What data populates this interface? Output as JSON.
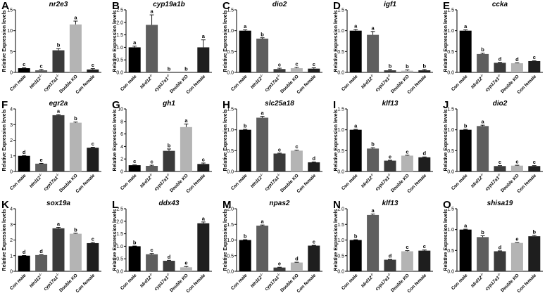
{
  "figure": {
    "ylabel": "Relative Expression levels",
    "bar_colors": [
      "#000000",
      "#5e5e5e",
      "#3a3a3a",
      "#b4b4b4",
      "#1e1e1e"
    ]
  },
  "chart_data": [
    {
      "panel": "A",
      "type": "bar",
      "title": "nr2e3",
      "ylabel": "Relative Expression levels",
      "ylim": [
        0,
        15
      ],
      "yticks": [
        "0",
        "5",
        "10",
        "15"
      ],
      "categories": [
        "Con male",
        "tdrd12-/-",
        "cyp17a1-/-",
        "Double KO",
        "Con female"
      ],
      "values": [
        1.0,
        0.5,
        5.3,
        11.5,
        0.7
      ],
      "errors": [
        0.1,
        0.2,
        0.4,
        0.8,
        0.2
      ],
      "letters": [
        "c",
        "c",
        "b",
        "a",
        "c"
      ],
      "exponent_marks": [
        false,
        true,
        true,
        false,
        false
      ]
    },
    {
      "panel": "B",
      "type": "bar",
      "title": "cyp19a1b",
      "ylabel": "Relative Expression levels",
      "ylim": [
        0,
        2.5
      ],
      "yticks": [
        "0.0",
        "0.5",
        "1.0",
        "1.5",
        "2.0",
        "2.5"
      ],
      "categories": [
        "Con male",
        "tdrd12-/-",
        "cyp17a1-/-",
        "Double KO",
        "Con female"
      ],
      "values": [
        1.0,
        1.9,
        0.0,
        0.0,
        1.0
      ],
      "errors": [
        0.05,
        0.4,
        0,
        0,
        0.3
      ],
      "letters": [
        "a",
        "a",
        "b",
        "b",
        "a"
      ],
      "exponent_marks": [
        false,
        true,
        true,
        false,
        false
      ]
    },
    {
      "panel": "C",
      "type": "bar",
      "title": "dio2",
      "ylabel": "Relative Expression levels",
      "ylim": [
        0,
        1.5
      ],
      "yticks": [
        "0.0",
        "0.5",
        "1.0",
        "1.5"
      ],
      "categories": [
        "Con male",
        "tdrd12-/-",
        "cyp17a1-/-",
        "Double KO",
        "Con female"
      ],
      "values": [
        1.0,
        0.81,
        0.08,
        0.1,
        0.09
      ],
      "errors": [
        0.02,
        0.02,
        0.02,
        0.02,
        0.02
      ],
      "letters": [
        "a",
        "b",
        "c",
        "c",
        "c"
      ],
      "exponent_marks": [
        false,
        true,
        true,
        false,
        false
      ]
    },
    {
      "panel": "D",
      "type": "bar",
      "title": "igf1",
      "ylabel": "Relative Expression levels",
      "ylim": [
        0,
        1.5
      ],
      "yticks": [
        "0.0",
        "0.5",
        "1.0",
        "1.5"
      ],
      "categories": [
        "Con male",
        "tdrd12-/-",
        "cyp17a1-/-",
        "Double KO",
        "Con female"
      ],
      "values": [
        1.0,
        0.9,
        0.05,
        0.04,
        0.05
      ],
      "errors": [
        0.03,
        0.08,
        0.02,
        0.02,
        0.02
      ],
      "letters": [
        "a",
        "a",
        "b",
        "b",
        "b"
      ],
      "exponent_marks": [
        false,
        true,
        true,
        false,
        false
      ]
    },
    {
      "panel": "E",
      "type": "bar",
      "title": "ccka",
      "ylabel": "Relative Expression levels",
      "ylim": [
        0,
        1.5
      ],
      "yticks": [
        "0.0",
        "0.5",
        "1.0",
        "1.5"
      ],
      "categories": [
        "Con male",
        "tdrd12-/-",
        "cyp17a1-/-",
        "Double KO",
        "Con female"
      ],
      "values": [
        1.0,
        0.44,
        0.23,
        0.22,
        0.27
      ],
      "errors": [
        0.02,
        0.02,
        0.01,
        0.01,
        0.01
      ],
      "letters": [
        "a",
        "b",
        "d",
        "d",
        "c"
      ],
      "exponent_marks": [
        false,
        true,
        true,
        false,
        false
      ]
    },
    {
      "panel": "F",
      "type": "bar",
      "title": "egr2a",
      "ylabel": "Relative Expression levels",
      "ylim": [
        0,
        4
      ],
      "yticks": [
        "0",
        "1",
        "2",
        "3",
        "4"
      ],
      "categories": [
        "Con male",
        "tdrd12-/-",
        "cyp17a1-/-",
        "Double KO",
        "Con female"
      ],
      "values": [
        1.0,
        0.5,
        3.6,
        3.12,
        1.52
      ],
      "errors": [
        0.02,
        0.02,
        0.04,
        0.04,
        0.03
      ],
      "letters": [
        "d",
        "e",
        "a",
        "b",
        "c"
      ],
      "exponent_marks": [
        false,
        true,
        true,
        false,
        false
      ]
    },
    {
      "panel": "G",
      "type": "bar",
      "title": "gh1",
      "ylabel": "Relative Expression levels",
      "ylim": [
        0,
        10
      ],
      "yticks": [
        "0",
        "2",
        "4",
        "6",
        "8",
        "10"
      ],
      "categories": [
        "Con male",
        "tdrd12-/-",
        "cyp17a1-/-",
        "Double KO",
        "Con female"
      ],
      "values": [
        1.0,
        0.9,
        3.3,
        7.1,
        1.2
      ],
      "errors": [
        0.05,
        0.1,
        0.3,
        0.5,
        0.15
      ],
      "letters": [
        "c",
        "c",
        "b",
        "a",
        "c"
      ],
      "exponent_marks": [
        false,
        true,
        true,
        false,
        false
      ]
    },
    {
      "panel": "H",
      "type": "bar",
      "title": "slc25a18",
      "ylabel": "Relative Expression levels",
      "ylim": [
        0,
        1.5
      ],
      "yticks": [
        "0.0",
        "0.5",
        "1.0",
        "1.5"
      ],
      "categories": [
        "Con male",
        "tdrd12-/-",
        "cyp17a1-/-",
        "Double KO",
        "Con female"
      ],
      "values": [
        1.0,
        1.29,
        0.43,
        0.5,
        0.22
      ],
      "errors": [
        0.01,
        0.03,
        0.01,
        0.01,
        0.01
      ],
      "letters": [
        "b",
        "a",
        "c",
        "c",
        "d"
      ],
      "exponent_marks": [
        false,
        true,
        true,
        false,
        false
      ]
    },
    {
      "panel": "I",
      "type": "bar",
      "title": "klf13",
      "ylabel": "Relative Expression levels",
      "ylim": [
        0,
        1.5
      ],
      "yticks": [
        "0.0",
        "0.5",
        "1.0",
        "1.5"
      ],
      "categories": [
        "Con male",
        "tdrd12-/-",
        "cyp17a1-/-",
        "Double KO",
        "Con female"
      ],
      "values": [
        1.0,
        0.55,
        0.26,
        0.38,
        0.34
      ],
      "errors": [
        0.01,
        0.02,
        0.01,
        0.01,
        0.01
      ],
      "letters": [
        "a",
        "b",
        "e",
        "c",
        "d"
      ],
      "exponent_marks": [
        false,
        true,
        true,
        false,
        false
      ]
    },
    {
      "panel": "J",
      "type": "bar",
      "title": "dio2",
      "ylabel": "Relative Expression levels",
      "ylim": [
        0,
        1.5
      ],
      "yticks": [
        "0.0",
        "0.5",
        "1.0",
        "1.5"
      ],
      "categories": [
        "Con male",
        "tdrd12-/-",
        "cyp17a1-/-",
        "Double KO",
        "Con female"
      ],
      "values": [
        1.0,
        1.09,
        0.13,
        0.14,
        0.13
      ],
      "errors": [
        0.01,
        0.02,
        0.01,
        0.01,
        0.01
      ],
      "letters": [
        "b",
        "a",
        "c",
        "c",
        "c"
      ],
      "exponent_marks": [
        false,
        true,
        true,
        false,
        false
      ]
    },
    {
      "panel": "K",
      "type": "bar",
      "title": "sox19a",
      "ylabel": "Relative Expression levels",
      "ylim": [
        0,
        4
      ],
      "yticks": [
        "0",
        "1",
        "2",
        "3",
        "4"
      ],
      "categories": [
        "Con male",
        "tdrd12-/-",
        "cyp17a1-/-",
        "Double KO",
        "Con female"
      ],
      "values": [
        1.0,
        1.04,
        2.75,
        2.4,
        1.8
      ],
      "errors": [
        0.01,
        0.02,
        0.06,
        0.03,
        0.04
      ],
      "letters": [
        "d",
        "d",
        "a",
        "b",
        "c"
      ],
      "exponent_marks": [
        false,
        true,
        true,
        false,
        false
      ]
    },
    {
      "panel": "L",
      "type": "bar",
      "title": "ddx43",
      "ylabel": "Relative Expression levels",
      "ylim": [
        0,
        2.5
      ],
      "yticks": [
        "0.0",
        "0.5",
        "1.0",
        "1.5",
        "2.0",
        "2.5"
      ],
      "categories": [
        "Con male",
        "tdrd12-/-",
        "cyp17a1-/-",
        "Double KO",
        "Con female"
      ],
      "values": [
        1.0,
        0.68,
        0.42,
        0.16,
        1.92
      ],
      "errors": [
        0.01,
        0.03,
        0.02,
        0.03,
        0.05
      ],
      "letters": [
        "b",
        "c",
        "d",
        "e",
        "a"
      ],
      "exponent_marks": [
        false,
        true,
        true,
        false,
        false
      ]
    },
    {
      "panel": "M",
      "type": "bar",
      "title": "npas2",
      "ylabel": "Relative Expression levels",
      "ylim": [
        0,
        2.0
      ],
      "yticks": [
        "0.0",
        "0.5",
        "1.0",
        "1.5",
        "2.0"
      ],
      "categories": [
        "Con male",
        "tdrd12-/-",
        "cyp17a1-/-",
        "Double KO",
        "Con female"
      ],
      "values": [
        1.0,
        1.46,
        0.12,
        0.28,
        0.82
      ],
      "errors": [
        0.01,
        0.02,
        0.01,
        0.01,
        0.01
      ],
      "letters": [
        "b",
        "a",
        "e",
        "d",
        "c"
      ],
      "exponent_marks": [
        false,
        true,
        true,
        false,
        false
      ]
    },
    {
      "panel": "N",
      "type": "bar",
      "title": "klf13",
      "ylabel": "Relative Expression levels",
      "ylim": [
        0,
        2.0
      ],
      "yticks": [
        "0.0",
        "0.5",
        "1.0",
        "1.5",
        "2.0"
      ],
      "categories": [
        "Con male",
        "tdrd12-/-",
        "cyp17a1-/-",
        "Double KO",
        "Con female"
      ],
      "values": [
        1.0,
        1.8,
        0.37,
        0.64,
        0.66
      ],
      "errors": [
        0.01,
        0.03,
        0.01,
        0.02,
        0.02
      ],
      "letters": [
        "b",
        "a",
        "d",
        "c",
        "c"
      ],
      "exponent_marks": [
        false,
        true,
        true,
        false,
        false
      ]
    },
    {
      "panel": "O",
      "type": "bar",
      "title": "shisa19",
      "ylabel": "Relative Expression levels",
      "ylim": [
        0,
        1.5
      ],
      "yticks": [
        "0.0",
        "0.5",
        "1.0",
        "1.5"
      ],
      "categories": [
        "Con male",
        "tdrd12-/-",
        "cyp17a1-/-",
        "Double KO",
        "Con female"
      ],
      "values": [
        1.0,
        0.82,
        0.48,
        0.68,
        0.84
      ],
      "errors": [
        0.01,
        0.03,
        0.01,
        0.01,
        0.02
      ],
      "letters": [
        "a",
        "b",
        "d",
        "e",
        "b"
      ],
      "exponent_marks": [
        false,
        true,
        true,
        false,
        false
      ]
    }
  ]
}
